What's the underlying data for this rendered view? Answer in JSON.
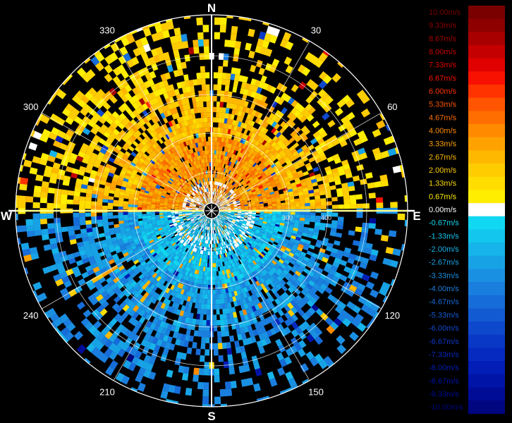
{
  "radar": {
    "cardinals": {
      "north": "N",
      "south": "S",
      "east": "E",
      "west": "W"
    },
    "azimuth_labels": [
      "30",
      "60",
      "120",
      "150",
      "210",
      "240",
      "300",
      "330"
    ],
    "azimuths_deg": [
      30,
      60,
      120,
      150,
      210,
      240,
      300,
      330
    ],
    "range_labels": [
      "200",
      "300",
      "400"
    ],
    "colors": {
      "ring": "#ffffff",
      "axis": "#ffff00",
      "background": "#000000"
    }
  },
  "legend": {
    "entries": [
      {
        "label": "10.00m/s",
        "color": "#7a0000"
      },
      {
        "label": "9.33m/s",
        "color": "#8e0000"
      },
      {
        "label": "8.67m/s",
        "color": "#a80000"
      },
      {
        "label": "8.00m/s",
        "color": "#c40000"
      },
      {
        "label": "7.33m/s",
        "color": "#e00000"
      },
      {
        "label": "6.67m/s",
        "color": "#f81000"
      },
      {
        "label": "6.00m/s",
        "color": "#ff3300"
      },
      {
        "label": "5.33m/s",
        "color": "#ff5500"
      },
      {
        "label": "4.67m/s",
        "color": "#ff6e00"
      },
      {
        "label": "4.00m/s",
        "color": "#ff8a00"
      },
      {
        "label": "3.33m/s",
        "color": "#ffa200"
      },
      {
        "label": "2.67m/s",
        "color": "#ffb800"
      },
      {
        "label": "2.00m/s",
        "color": "#ffcc00"
      },
      {
        "label": "1.33m/s",
        "color": "#ffdd00"
      },
      {
        "label": "0.67m/s",
        "color": "#ffee00"
      },
      {
        "label": "0.00m/s",
        "color": "#ffffff"
      },
      {
        "label": "-0.67m/s",
        "color": "#11d8f2"
      },
      {
        "label": "-1.33m/s",
        "color": "#12c6ee"
      },
      {
        "label": "-2.00m/s",
        "color": "#16b4ea"
      },
      {
        "label": "-2.67m/s",
        "color": "#18a2e6"
      },
      {
        "label": "-3.33m/s",
        "color": "#1a90e2"
      },
      {
        "label": "-4.00m/s",
        "color": "#1a7ede"
      },
      {
        "label": "-4.67m/s",
        "color": "#166cd8"
      },
      {
        "label": "-5.33m/s",
        "color": "#125ad2"
      },
      {
        "label": "-6.00m/s",
        "color": "#0e48cc"
      },
      {
        "label": "-6.67m/s",
        "color": "#0a38c6"
      },
      {
        "label": "-7.33m/s",
        "color": "#062ac0"
      },
      {
        "label": "-8.00m/s",
        "color": "#021eb6"
      },
      {
        "label": "-8.67m/s",
        "color": "#0014a8"
      },
      {
        "label": "-9.33m/s",
        "color": "#000c96"
      },
      {
        "label": "-10.00m/s",
        "color": "#000680"
      }
    ]
  }
}
